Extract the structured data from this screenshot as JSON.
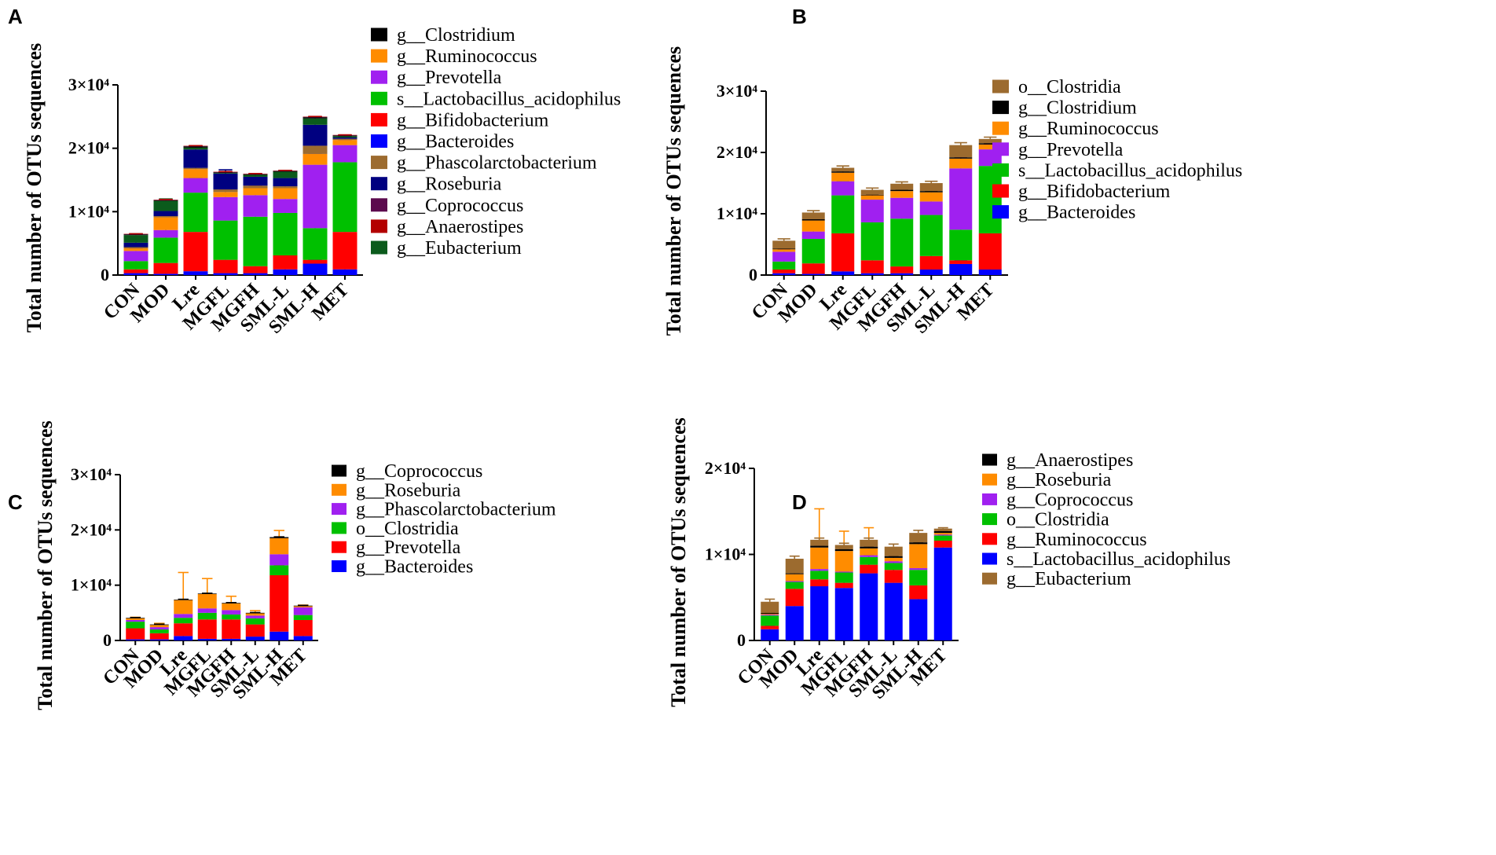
{
  "figure": {
    "panels_text": {
      "A": "A",
      "B": "B",
      "C": "C",
      "D": "D"
    }
  },
  "chart_data": [
    {
      "panel": "A",
      "type": "bar",
      "stacked": true,
      "ylabel": "Total number of OTUs sequences",
      "ylim": [
        0,
        30000
      ],
      "yticks": [
        {
          "v": 0,
          "label": "0"
        },
        {
          "v": 10000,
          "label": "1×10⁴"
        },
        {
          "v": 20000,
          "label": "2×10⁴"
        },
        {
          "v": 30000,
          "label": "3×10⁴"
        }
      ],
      "categories": [
        "CON",
        "MOD",
        "Lre",
        "MGFL",
        "MGFH",
        "SML-L",
        "SML-H",
        "MET"
      ],
      "series": [
        {
          "name": "g__Bacteroides",
          "color": "#0000ff",
          "values": [
            300,
            200,
            600,
            300,
            300,
            900,
            1800,
            900
          ],
          "errors": [
            200,
            300,
            400,
            300,
            300,
            500,
            600,
            300
          ]
        },
        {
          "name": "g__Bifidobacterium",
          "color": "#ff0000",
          "values": [
            600,
            1700,
            6200,
            2100,
            1100,
            2200,
            600,
            5900
          ],
          "errors": [
            600,
            600,
            1000,
            900,
            900,
            900,
            600,
            2400
          ]
        },
        {
          "name": "s__Lactobacillus_acidophilus",
          "color": "#00c000",
          "values": [
            1300,
            4000,
            6200,
            6200,
            7800,
            6700,
            5000,
            11000
          ],
          "errors": [
            400,
            1500,
            2300,
            2000,
            2000,
            2000,
            1000,
            1500
          ]
        },
        {
          "name": "g__Prevotella",
          "color": "#a020f0",
          "values": [
            1600,
            1200,
            2300,
            3700,
            3400,
            2200,
            10000,
            2700
          ],
          "errors": [
            400,
            600,
            700,
            1000,
            800,
            700,
            1800,
            800
          ]
        },
        {
          "name": "g__Ruminococcus",
          "color": "#ff8c00",
          "values": [
            400,
            2000,
            1400,
            800,
            1100,
            1700,
            1700,
            800
          ],
          "errors": [
            300,
            500,
            500,
            400,
            400,
            600,
            500,
            300
          ]
        },
        {
          "name": "g__Phascolarctobacterium",
          "color": "#9c6b2f",
          "values": [
            200,
            200,
            200,
            400,
            400,
            300,
            1300,
            200
          ],
          "errors": [
            100,
            100,
            100,
            200,
            200,
            150,
            300,
            100
          ]
        },
        {
          "name": "g__Roseburia",
          "color": "#000080",
          "values": [
            700,
            800,
            2900,
            2500,
            1400,
            1300,
            3300,
            200
          ],
          "errors": [
            300,
            400,
            500,
            600,
            400,
            400,
            500,
            100
          ]
        },
        {
          "name": "g__Eubacterium",
          "color": "#0b5b1c",
          "values": [
            1200,
            1600,
            300,
            100,
            300,
            1000,
            1000,
            200
          ],
          "errors": [
            200,
            300,
            100,
            100,
            100,
            200,
            200,
            100
          ]
        },
        {
          "name": "g__Clostridium",
          "color": "#000000",
          "values": [
            100,
            100,
            200,
            100,
            100,
            100,
            200,
            100
          ],
          "errors": [
            50,
            50,
            100,
            50,
            50,
            50,
            100,
            50
          ]
        },
        {
          "name": "g__Coprococcus",
          "color": "#5c0a4e",
          "values": [
            50,
            50,
            50,
            50,
            50,
            50,
            50,
            50
          ],
          "errors": [
            20,
            20,
            20,
            20,
            20,
            20,
            20,
            20
          ]
        },
        {
          "name": "g__Anaerostipes",
          "color": "#b30000",
          "values": [
            50,
            50,
            50,
            50,
            50,
            50,
            50,
            50
          ],
          "errors": [
            20,
            20,
            20,
            20,
            20,
            20,
            20,
            20
          ]
        }
      ],
      "legend_order": [
        "g__Clostridium",
        "g__Ruminococcus",
        "g__Prevotella",
        "s__Lactobacillus_acidophilus",
        "g__Bifidobacterium",
        "g__Bacteroides",
        "g__Phascolarctobacterium",
        "g__Roseburia",
        "g__Coprococcus",
        "g__Anaerostipes",
        "g__Eubacterium"
      ],
      "legend_placement": "right"
    },
    {
      "panel": "B",
      "type": "bar",
      "stacked": true,
      "ylabel": "Total number of OTUs sequences",
      "ylim": [
        0,
        30000
      ],
      "yticks": [
        {
          "v": 0,
          "label": "0"
        },
        {
          "v": 10000,
          "label": "1×10⁴"
        },
        {
          "v": 20000,
          "label": "2×10⁴"
        },
        {
          "v": 30000,
          "label": "3×10⁴"
        }
      ],
      "categories": [
        "CON",
        "MOD",
        "Lre",
        "MGFL",
        "MGFH",
        "SML-L",
        "SML-H",
        "MET"
      ],
      "series": [
        {
          "name": "g__Bacteroides",
          "color": "#0000ff",
          "values": [
            300,
            200,
            600,
            300,
            300,
            900,
            1800,
            900
          ],
          "errors": [
            200,
            300,
            400,
            300,
            300,
            500,
            600,
            300
          ]
        },
        {
          "name": "g__Bifidobacterium",
          "color": "#ff0000",
          "values": [
            600,
            1700,
            6200,
            2100,
            1100,
            2200,
            600,
            5900
          ],
          "errors": [
            600,
            600,
            1000,
            900,
            900,
            900,
            600,
            2400
          ]
        },
        {
          "name": "s__Lactobacillus_acidophilus",
          "color": "#00c000",
          "values": [
            1300,
            4000,
            6200,
            6200,
            7800,
            6700,
            5000,
            11000
          ],
          "errors": [
            400,
            1500,
            2300,
            2000,
            2000,
            2000,
            1000,
            1500
          ]
        },
        {
          "name": "g__Prevotella",
          "color": "#a020f0",
          "values": [
            1600,
            1200,
            2300,
            3700,
            3400,
            2200,
            10000,
            2700
          ],
          "errors": [
            400,
            600,
            700,
            1000,
            800,
            700,
            1800,
            800
          ]
        },
        {
          "name": "g__Ruminococcus",
          "color": "#ff8c00",
          "values": [
            400,
            1800,
            1400,
            700,
            1100,
            1500,
            1600,
            800
          ],
          "errors": [
            300,
            500,
            500,
            400,
            400,
            600,
            500,
            300
          ]
        },
        {
          "name": "g__Clostridium",
          "color": "#000000",
          "values": [
            100,
            200,
            200,
            100,
            200,
            200,
            200,
            200
          ],
          "errors": [
            50,
            50,
            100,
            50,
            50,
            50,
            100,
            50
          ]
        },
        {
          "name": "o__Clostridia",
          "color": "#9c6b2f",
          "values": [
            1300,
            1100,
            600,
            800,
            1000,
            1300,
            2000,
            700
          ],
          "errors": [
            300,
            300,
            300,
            300,
            300,
            300,
            400,
            300
          ]
        }
      ],
      "legend_order": [
        "o__Clostridia",
        "g__Clostridium",
        "g__Ruminococcus",
        "g__Prevotella",
        "s__Lactobacillus_acidophilus",
        "g__Bifidobacterium",
        "g__Bacteroides"
      ],
      "legend_placement": "right"
    },
    {
      "panel": "C",
      "type": "bar",
      "stacked": true,
      "ylabel": "Total number of OTUs sequences",
      "ylim": [
        0,
        30000
      ],
      "yticks": [
        {
          "v": 0,
          "label": "0"
        },
        {
          "v": 10000,
          "label": "1×10⁴"
        },
        {
          "v": 20000,
          "label": "2×10⁴"
        },
        {
          "v": 30000,
          "label": "3×10⁴"
        }
      ],
      "categories": [
        "CON",
        "MOD",
        "Lre",
        "MGFL",
        "MGFH",
        "SML-L",
        "SML-H",
        "MET"
      ],
      "series": [
        {
          "name": "g__Bacteroides",
          "color": "#0000ff",
          "values": [
            200,
            200,
            800,
            300,
            300,
            700,
            1600,
            800
          ],
          "errors": [
            150,
            150,
            400,
            300,
            200,
            500,
            500,
            200
          ]
        },
        {
          "name": "g__Prevotella",
          "color": "#ff0000",
          "values": [
            2000,
            1100,
            2300,
            3500,
            3500,
            2200,
            10200,
            2900
          ],
          "errors": [
            300,
            400,
            600,
            800,
            600,
            500,
            1800,
            500
          ]
        },
        {
          "name": "o__Clostridia",
          "color": "#00c000",
          "values": [
            1200,
            700,
            1000,
            1200,
            900,
            1100,
            1800,
            900
          ],
          "errors": [
            200,
            200,
            300,
            300,
            300,
            300,
            400,
            200
          ]
        },
        {
          "name": "g__Phascolarctobacterium",
          "color": "#a020f0",
          "values": [
            300,
            400,
            700,
            800,
            800,
            500,
            2000,
            1400
          ],
          "errors": [
            100,
            100,
            200,
            200,
            200,
            200,
            400,
            200
          ]
        },
        {
          "name": "g__Roseburia",
          "color": "#ff8c00",
          "values": [
            300,
            400,
            2500,
            2600,
            1200,
            400,
            2900,
            200
          ],
          "errors": [
            200,
            300,
            5000,
            2800,
            1300,
            500,
            1400,
            200
          ]
        },
        {
          "name": "g__Coprococcus",
          "color": "#000000",
          "values": [
            100,
            100,
            100,
            100,
            100,
            100,
            200,
            100
          ],
          "errors": [
            50,
            50,
            50,
            50,
            50,
            50,
            50,
            50
          ]
        }
      ],
      "legend_order": [
        "g__Coprococcus",
        "g__Roseburia",
        "g__Phascolarctobacterium",
        "o__Clostridia",
        "g__Prevotella",
        "g__Bacteroides"
      ],
      "legend_placement": "right"
    },
    {
      "panel": "D",
      "type": "bar",
      "stacked": true,
      "ylabel": "Total number of OTUs sequences",
      "ylim": [
        0,
        20000
      ],
      "yticks": [
        {
          "v": 0,
          "label": "0"
        },
        {
          "v": 10000,
          "label": "1×10⁴"
        },
        {
          "v": 20000,
          "label": "2×10⁴"
        }
      ],
      "categories": [
        "CON",
        "MOD",
        "Lre",
        "MGFL",
        "MGFH",
        "SML-L",
        "SML-H",
        "MET"
      ],
      "series": [
        {
          "name": "s__Lactobacillus_acidophilus",
          "color": "#0000ff",
          "values": [
            1300,
            4000,
            6300,
            6100,
            7800,
            6700,
            4800,
            10800
          ],
          "errors": [
            400,
            1600,
            2300,
            2000,
            2100,
            2000,
            1000,
            1500
          ]
        },
        {
          "name": "g__Ruminococcus",
          "color": "#ff0000",
          "values": [
            400,
            2000,
            800,
            600,
            1000,
            1500,
            1600,
            800
          ],
          "errors": [
            200,
            600,
            400,
            300,
            400,
            600,
            500,
            300
          ]
        },
        {
          "name": "o__Clostridia",
          "color": "#00c000",
          "values": [
            1200,
            800,
            1000,
            1200,
            900,
            800,
            1800,
            600
          ],
          "errors": [
            200,
            300,
            300,
            300,
            300,
            300,
            400,
            200
          ]
        },
        {
          "name": "g__Coprococcus",
          "color": "#a020f0",
          "values": [
            100,
            100,
            200,
            100,
            200,
            200,
            200,
            100
          ],
          "errors": [
            50,
            50,
            100,
            50,
            50,
            50,
            100,
            50
          ]
        },
        {
          "name": "g__Roseburia",
          "color": "#ff8c00",
          "values": [
            100,
            800,
            2500,
            2400,
            800,
            400,
            2800,
            200
          ],
          "errors": [
            100,
            300,
            4500,
            2300,
            2400,
            500,
            800,
            100
          ]
        },
        {
          "name": "g__Anaerostipes",
          "color": "#000000",
          "values": [
            100,
            100,
            200,
            200,
            200,
            200,
            200,
            200
          ],
          "errors": [
            50,
            50,
            50,
            50,
            50,
            50,
            50,
            50
          ]
        },
        {
          "name": "g__Eubacterium",
          "color": "#9c6b2f",
          "values": [
            1300,
            1700,
            700,
            500,
            800,
            1100,
            1100,
            300
          ],
          "errors": [
            300,
            300,
            200,
            200,
            200,
            300,
            300,
            100
          ]
        }
      ],
      "legend_order": [
        "g__Anaerostipes",
        "g__Roseburia",
        "g__Coprococcus",
        "o__Clostridia",
        "g__Ruminococcus",
        "s__Lactobacillus_acidophilus",
        "g__Eubacterium"
      ],
      "legend_placement": "right"
    }
  ]
}
